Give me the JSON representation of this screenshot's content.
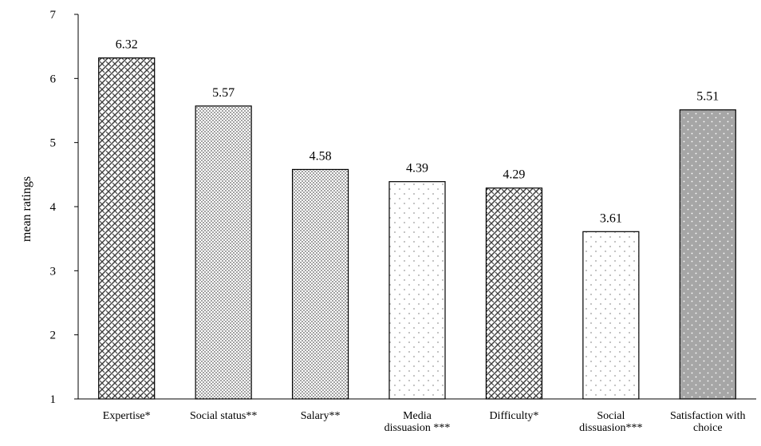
{
  "chart_data": {
    "type": "bar",
    "title": "",
    "xlabel": "",
    "ylabel": "mean ratings",
    "ylim": [
      1,
      7
    ],
    "yticks": [
      1,
      2,
      3,
      4,
      5,
      6,
      7
    ],
    "grid": false,
    "legend": "none",
    "categories": [
      [
        "Expertise*"
      ],
      [
        "Social status**"
      ],
      [
        "Salary**"
      ],
      [
        "Media",
        "dissuasion ***"
      ],
      [
        "Difficulty*"
      ],
      [
        "Social",
        "dissuasion***"
      ],
      [
        "Satisfaction with",
        "choice"
      ]
    ],
    "values": [
      6.32,
      5.57,
      4.58,
      4.39,
      4.29,
      3.61,
      5.51
    ],
    "data_labels": [
      "6.32",
      "5.57",
      "4.58",
      "4.39",
      "4.29",
      "3.61",
      "5.51"
    ],
    "bar_patterns": [
      "weave",
      "dense-dots",
      "dense-dots",
      "sparse-dots",
      "weave",
      "sparse-dots",
      "gray-dots"
    ],
    "colors": {
      "bar_outline": "#000000",
      "axis": "#000000",
      "weave_ink": "#4a4a4a",
      "dense_dot": "#555555",
      "sparse_dot": "#9a9a9a",
      "gray_fill": "#a6a6a6",
      "gray_dot": "#ffffff"
    }
  }
}
